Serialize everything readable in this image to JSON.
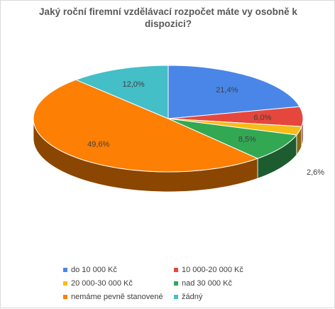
{
  "chart_data": {
    "type": "pie",
    "variant": "3d",
    "title": "Jaký roční firemní vzdělávací rozpočet máte vy osobně k dispozici?",
    "categories": [
      "do 10 000 Kč",
      "10 000-20 000 Kč",
      "20 000-30 000 Kč",
      "nad 30 000 Kč",
      "nemáme pevně stanovené",
      "žádný"
    ],
    "values": [
      21.4,
      6.0,
      2.6,
      8.5,
      49.6,
      12.0
    ],
    "data_labels": [
      "21,4%",
      "6,0%",
      "2,6%",
      "8,5%",
      "49,6%",
      "12,0%"
    ],
    "colors": [
      "#4a86e8",
      "#e6473d",
      "#f7bd16",
      "#33a853",
      "#fd7f03",
      "#44bec7"
    ],
    "legend_position": "bottom"
  }
}
